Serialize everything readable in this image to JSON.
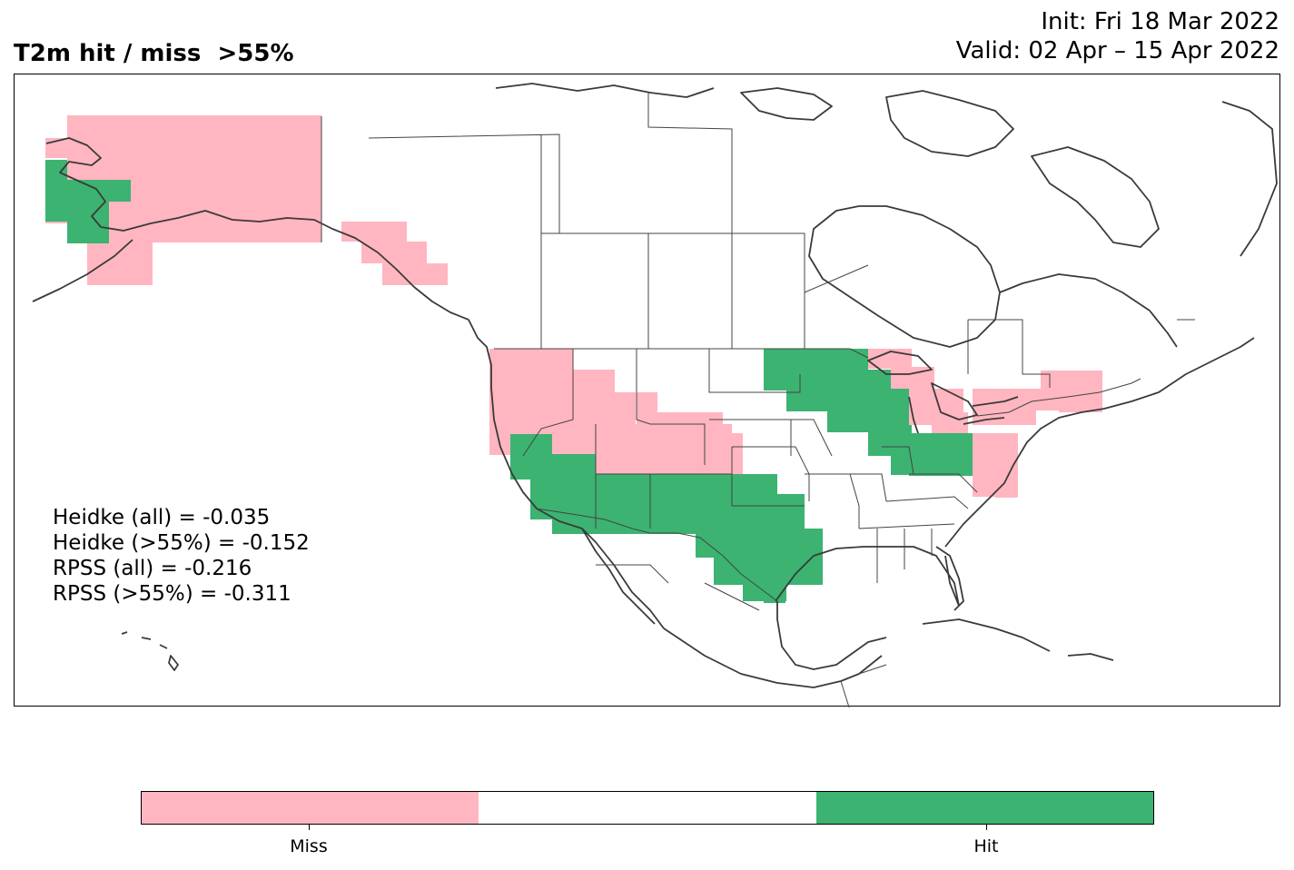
{
  "header": {
    "title": "T2m hit / miss  >55%",
    "init": "Init: Fri 18 Mar 2022",
    "valid": "Valid: 02 Apr – 15 Apr 2022"
  },
  "stats": [
    "Heidke (all) = -0.035",
    "Heidke (>55%) = -0.152",
    "RPSS (all) = -0.216",
    "RPSS (>55%) = -0.311"
  ],
  "legend": {
    "segments": [
      {
        "label": "Miss",
        "color": "#ffb6c1"
      },
      {
        "label": "",
        "color": "#ffffff"
      },
      {
        "label": "Hit",
        "color": "#3cb371"
      }
    ]
  },
  "colors": {
    "miss": "#ffb6c1",
    "hit": "#3cb371",
    "coastline": "#3a3a3a"
  }
}
